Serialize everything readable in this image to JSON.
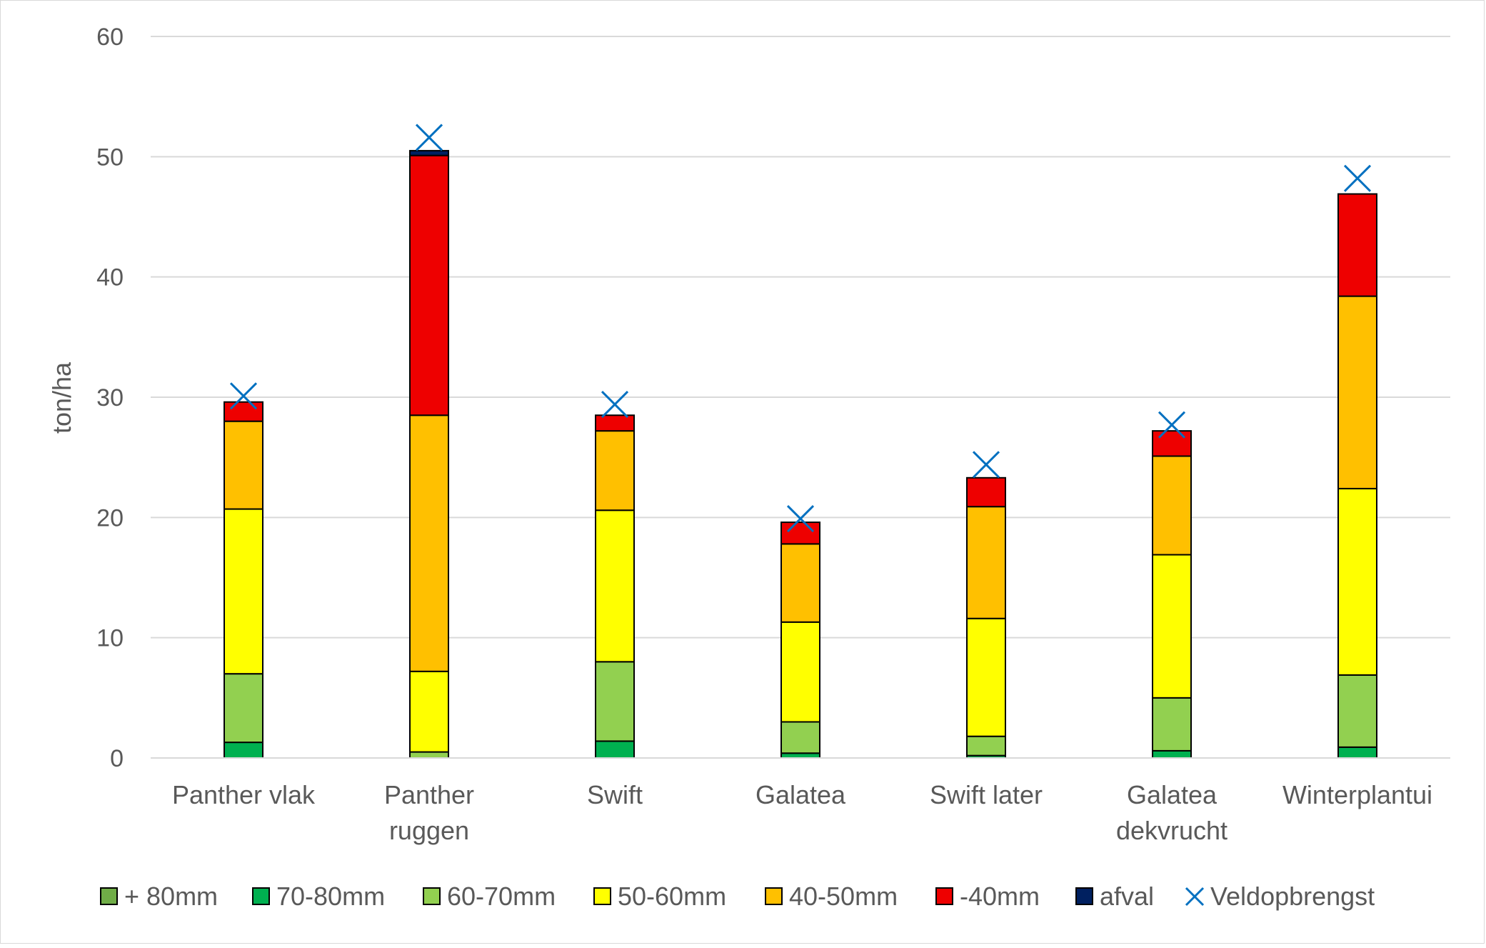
{
  "chart_data": {
    "type": "bar",
    "stacked": true,
    "title": "",
    "xlabel": "",
    "ylabel": "ton/ha",
    "ylim": [
      0,
      60
    ],
    "yticks": [
      "0",
      "10",
      "20",
      "30",
      "40",
      "50",
      "60"
    ],
    "grid": true,
    "legend_position": "bottom",
    "categories": [
      [
        "Panther vlak"
      ],
      [
        "Panther",
        "ruggen"
      ],
      [
        "Swift"
      ],
      [
        "Galatea"
      ],
      [
        "Swift later"
      ],
      [
        "Galatea",
        "dekvrucht"
      ],
      [
        "Winterplantui"
      ]
    ],
    "series": [
      {
        "name": "+ 80mm",
        "color": "#70AD47",
        "values": [
          0,
          0,
          0,
          0,
          0,
          0,
          0
        ]
      },
      {
        "name": "70-80mm",
        "color": "#00B050",
        "values": [
          1.3,
          0,
          1.4,
          0.4,
          0.2,
          0.6,
          0.9
        ]
      },
      {
        "name": "60-70mm",
        "color": "#92D050",
        "values": [
          5.7,
          0.5,
          6.6,
          2.6,
          1.6,
          4.4,
          6.0
        ]
      },
      {
        "name": "50-60mm",
        "color": "#FFFF00",
        "values": [
          13.7,
          6.7,
          12.6,
          8.3,
          9.8,
          11.9,
          15.5
        ]
      },
      {
        "name": "40-50mm",
        "color": "#FFC000",
        "values": [
          7.3,
          21.3,
          6.6,
          6.5,
          9.3,
          8.2,
          16.0
        ]
      },
      {
        "name": "-40mm",
        "color": "#EE0000",
        "values": [
          1.6,
          21.6,
          1.3,
          1.8,
          2.4,
          2.1,
          8.5
        ]
      },
      {
        "name": "afval",
        "color": "#002060",
        "values": [
          0,
          0.4,
          0,
          0,
          0,
          0,
          0
        ]
      }
    ],
    "markers": {
      "name": "Veldopbrengst",
      "color": "#0070C0",
      "values": [
        30.1,
        51.6,
        29.4,
        19.9,
        24.4,
        27.7,
        48.2
      ]
    }
  }
}
